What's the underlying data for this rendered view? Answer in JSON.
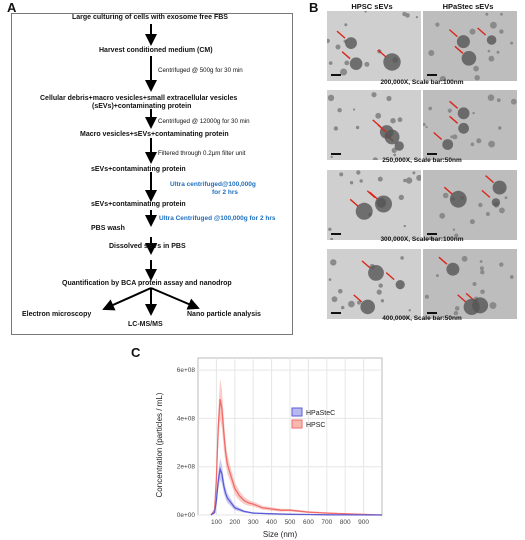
{
  "panels": {
    "a": "A",
    "b": "B",
    "c": "C"
  },
  "flowchart": {
    "steps": [
      "Large culturing of  cells with exosome free FBS",
      "Harvest conditioned medium (CM)",
      "Cellular debris+macro vesicles+small extracellular vesicles",
      "(sEVs)+contaminating protein",
      "Macro vesicles+sEVs+contaminating protein",
      "sEVs+contaminating protein",
      "sEVs+contaminating protein",
      "PBS wash",
      "Dissolved sEVs in PBS",
      "Quantification by BCA protein assay and nanodrop",
      "Electron microscopy",
      "LC-MS/MS",
      "Nano particle analysis"
    ],
    "notes": [
      "Centrifuged @ 500g for 30 min",
      "Centrifuged @ 12000g for 30 min",
      "Filtered through 0.2µm filter unit"
    ],
    "blue_notes": [
      "Ultra centrifuged@100,000g",
      "for 2 hrs",
      "Ultra Centrifuged @100,000g for 2 hrs"
    ]
  },
  "em": {
    "headers": [
      "HPSC sEVs",
      "HPaStec sEVs"
    ],
    "captions": [
      "200,000X, Scale bar:100nm",
      "250,000X, Scale bar:50nm",
      "300,000X, Scale bar:100nm",
      "400,000X, Scale bar:50nm"
    ]
  },
  "chart_data": {
    "type": "area",
    "xlabel": "Size (nm)",
    "ylabel": "Concentration (particles / mL)",
    "xlim": [
      0,
      1000
    ],
    "ylim": [
      0,
      650000000
    ],
    "xticks": [
      100,
      200,
      300,
      400,
      500,
      600,
      700,
      800,
      900
    ],
    "xtick_labels": [
      "100",
      "200",
      "300",
      "400",
      "500",
      "600",
      "700",
      "800",
      "900"
    ],
    "yticks": [
      0,
      200000000,
      400000000,
      600000000
    ],
    "ytick_labels": [
      "0e+00",
      "2e+08",
      "4e+08",
      "6e+08"
    ],
    "legend_position": "right",
    "grid": true,
    "series": [
      {
        "name": "HPaSteC",
        "color": "#5b5bd6",
        "band_color": "#b8b8f0",
        "x": [
          70,
          90,
          100,
          110,
          120,
          130,
          140,
          150,
          160,
          180,
          200,
          250,
          300,
          400,
          500,
          600,
          700,
          800,
          1000
        ],
        "y": [
          0,
          10000000,
          60000000,
          140000000,
          190000000,
          170000000,
          120000000,
          90000000,
          70000000,
          50000000,
          30000000,
          15000000,
          8000000,
          5000000,
          3000000,
          2000000,
          1000000,
          500000,
          0
        ],
        "band": [
          0,
          5000000,
          20000000,
          35000000,
          45000000,
          40000000,
          30000000,
          25000000,
          20000000,
          15000000,
          10000000,
          5000000,
          3000000,
          2000000,
          1000000,
          1000000,
          500000,
          0,
          0
        ]
      },
      {
        "name": "HPSC",
        "color": "#f06b6b",
        "band_color": "#f7b8b0",
        "x": [
          70,
          90,
          100,
          110,
          120,
          130,
          140,
          150,
          160,
          180,
          200,
          225,
          250,
          275,
          300,
          350,
          400,
          450,
          500,
          600,
          700,
          800,
          1000
        ],
        "y": [
          0,
          20000000,
          150000000,
          360000000,
          480000000,
          440000000,
          340000000,
          260000000,
          210000000,
          160000000,
          110000000,
          80000000,
          60000000,
          50000000,
          45000000,
          30000000,
          25000000,
          20000000,
          20000000,
          12000000,
          8000000,
          5000000,
          0
        ],
        "band": [
          0,
          10000000,
          40000000,
          70000000,
          85000000,
          80000000,
          65000000,
          50000000,
          40000000,
          30000000,
          25000000,
          20000000,
          15000000,
          12000000,
          10000000,
          8000000,
          7000000,
          6000000,
          5000000,
          4000000,
          3000000,
          2000000,
          0
        ]
      }
    ]
  }
}
